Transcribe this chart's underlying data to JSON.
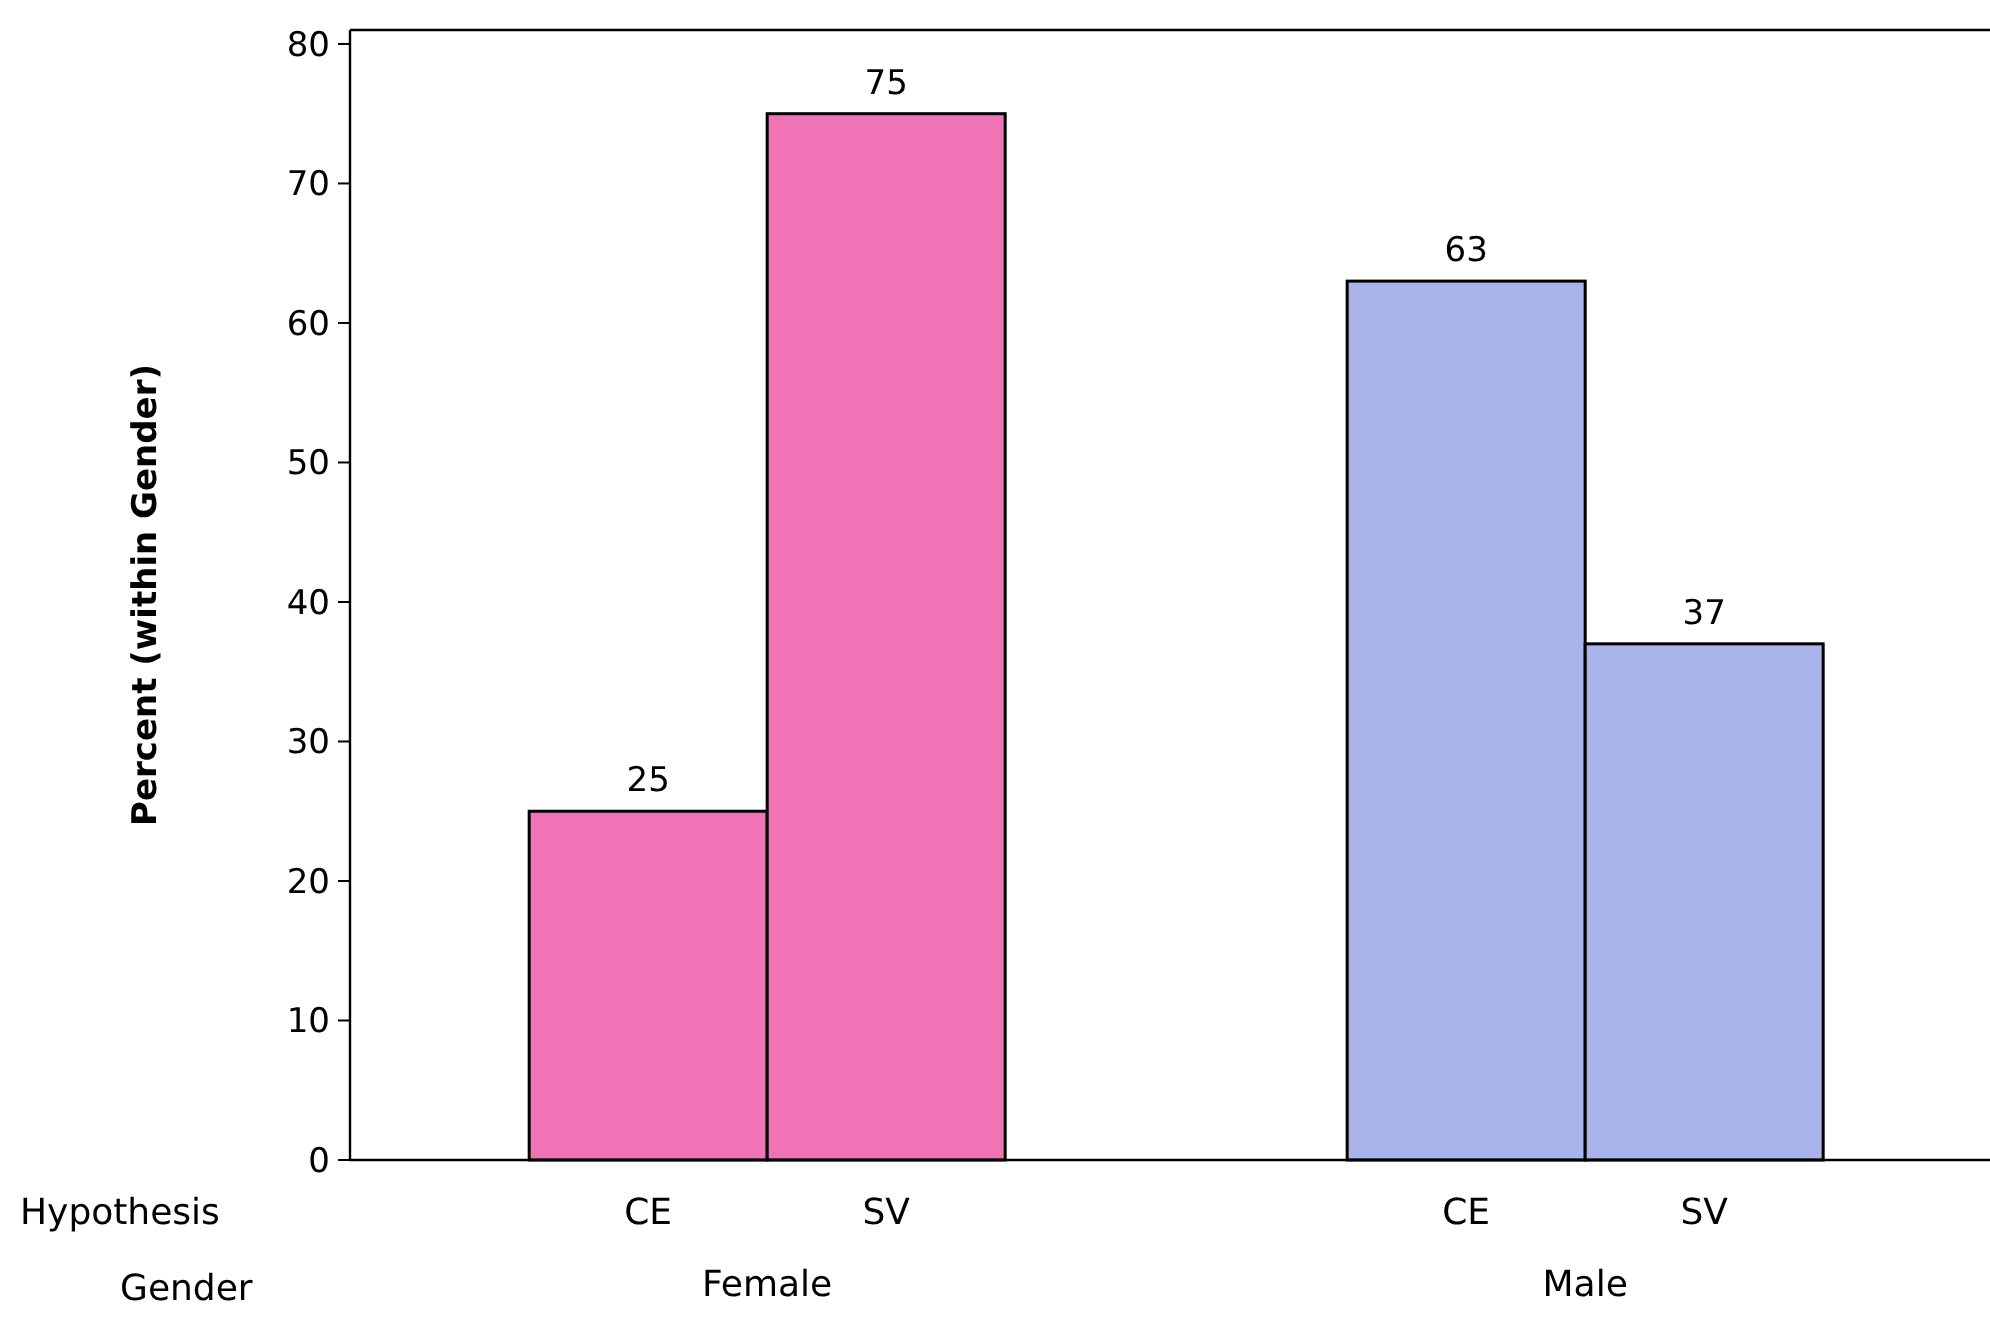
{
  "chart_data": {
    "type": "bar",
    "ylabel": "Percent (within Gender)",
    "categories": [
      "CE",
      "SV",
      "CE",
      "SV"
    ],
    "values": [
      25,
      75,
      63,
      37
    ],
    "colors": [
      "#f073b6",
      "#f073b6",
      "#a8b4ea",
      "#a8b4ea"
    ],
    "ylim": [
      0,
      81
    ],
    "yticks": [
      0,
      10,
      20,
      30,
      40,
      50,
      60,
      70,
      80
    ],
    "data_labels": true,
    "annotations": [
      "Hypothesis",
      "Gender",
      "Female",
      "Male"
    ]
  }
}
